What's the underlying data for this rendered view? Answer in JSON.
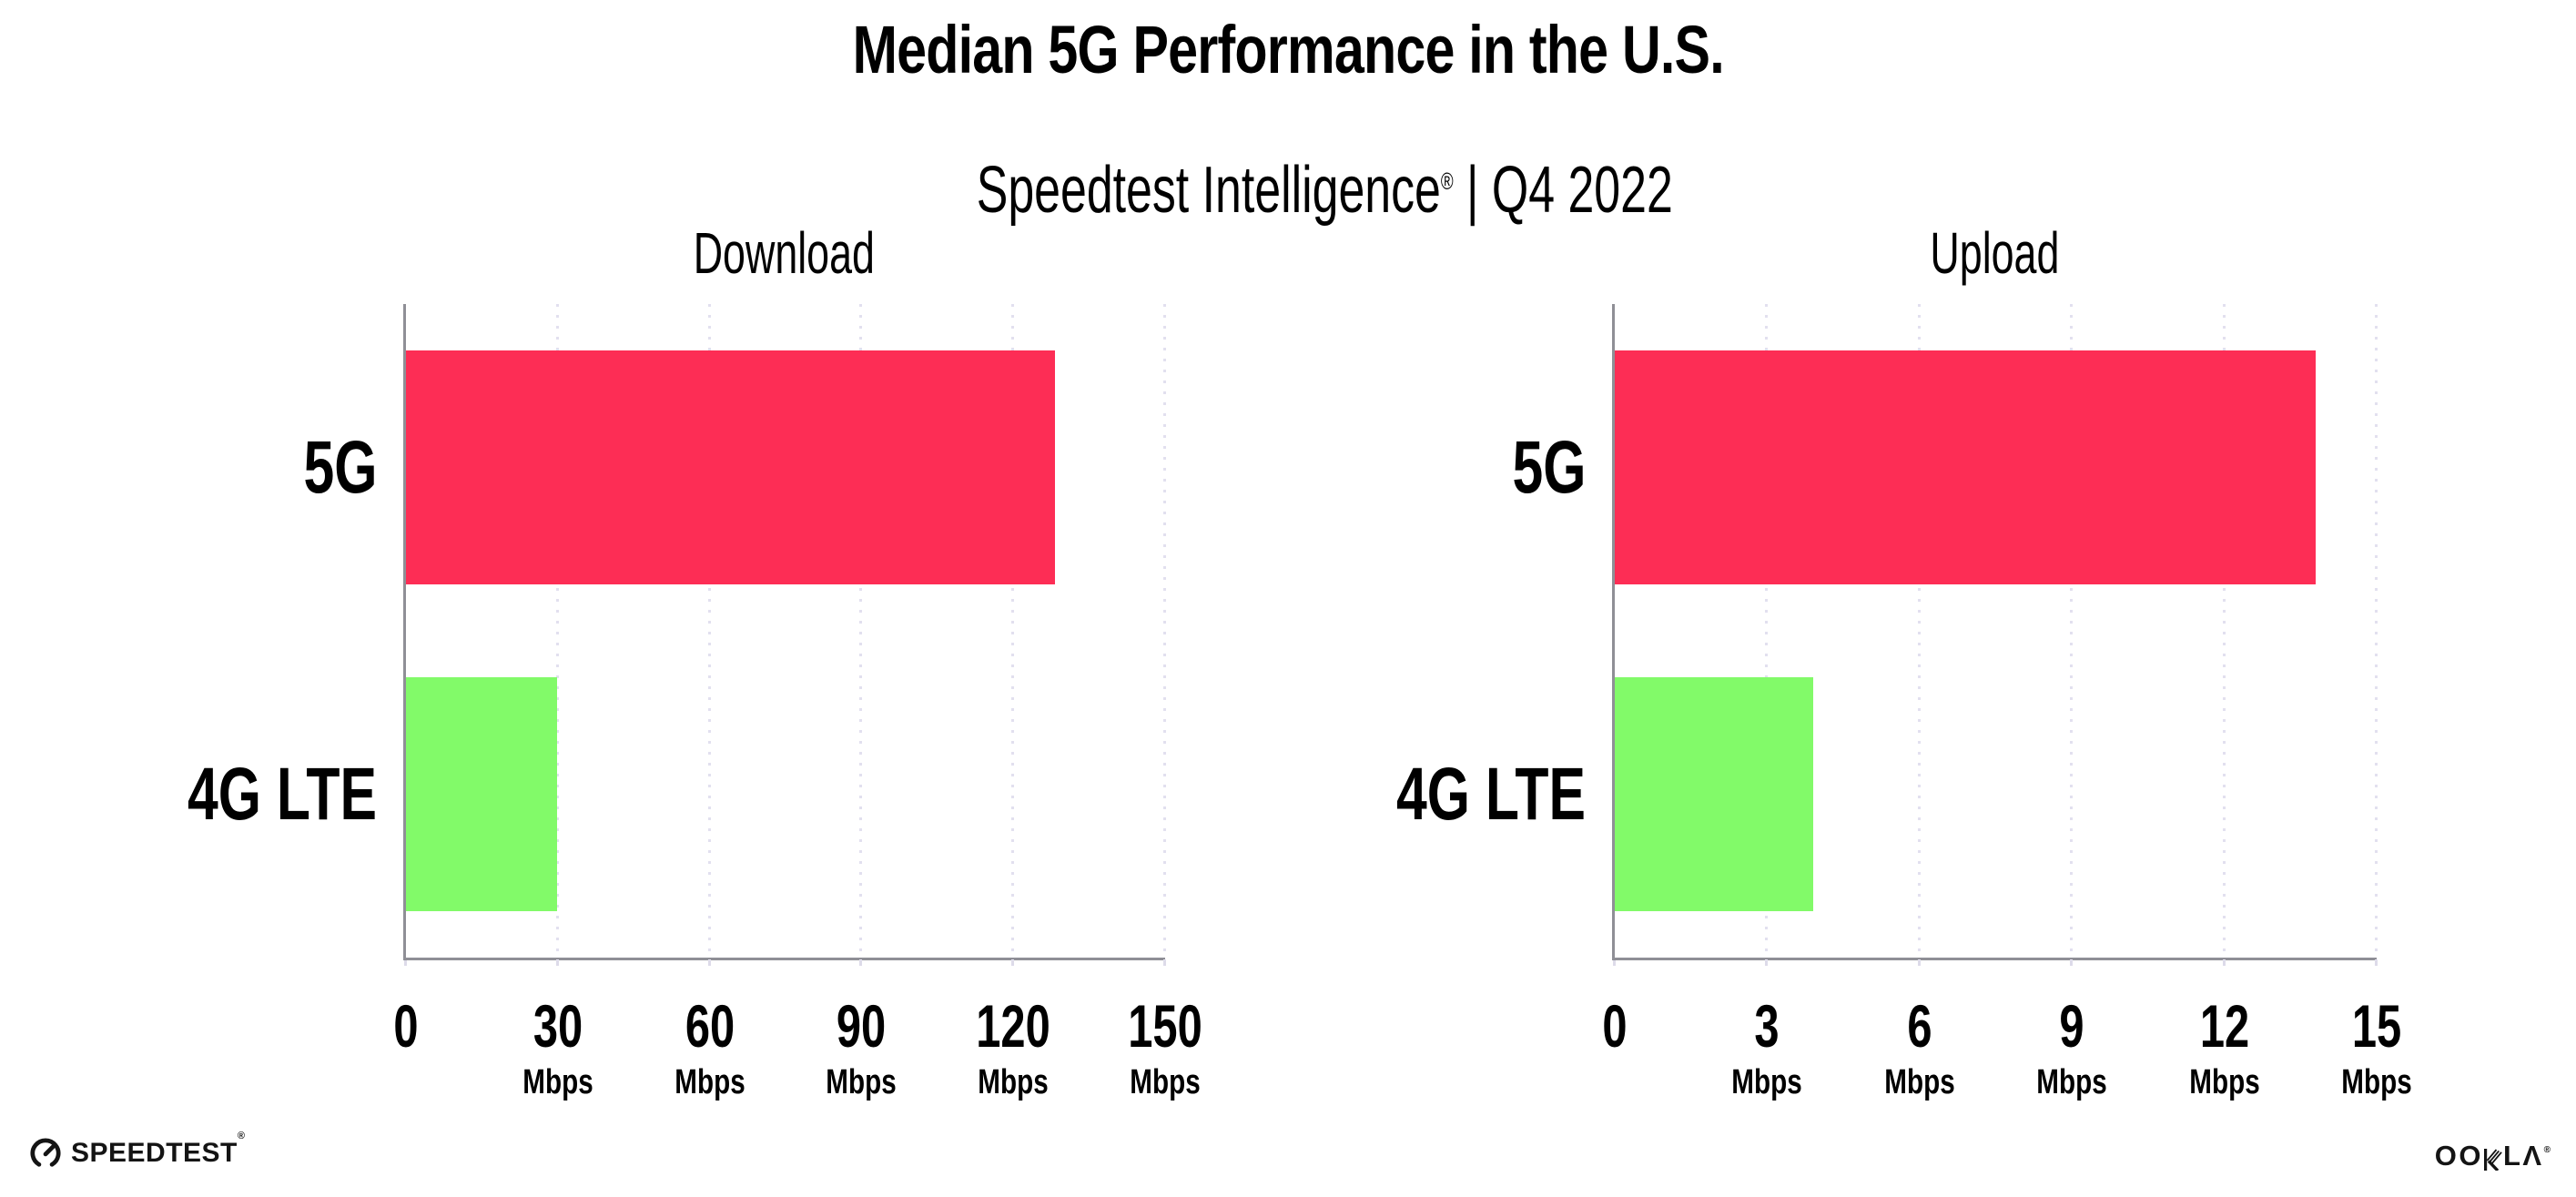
{
  "header": {
    "title": "Median 5G Performance in the U.S.",
    "subtitle_brand": "Speedtest Intelligence",
    "subtitle_reg": "®",
    "subtitle_rest": " | Q4 2022"
  },
  "colors": {
    "bar_colors": [
      "#FD2D55",
      "#82FA69"
    ],
    "axis": "#8f8f96",
    "gridline": "#e2e0ef",
    "text": "#000000"
  },
  "chart_data": [
    {
      "type": "bar",
      "orientation": "horizontal",
      "title": "Download",
      "categories": [
        "5G",
        "4G LTE"
      ],
      "values": [
        128.3,
        29.9
      ],
      "unit": "Mbps",
      "xlim": [
        0,
        150
      ],
      "xticks": [
        0,
        30,
        60,
        90,
        120,
        150
      ],
      "grid": "dotted-vertical",
      "bar_colors": [
        "#FD2D55",
        "#82FA69"
      ]
    },
    {
      "type": "bar",
      "orientation": "horizontal",
      "title": "Upload",
      "categories": [
        "5G",
        "4G LTE"
      ],
      "values": [
        13.8,
        3.9
      ],
      "unit": "Mbps",
      "xlim": [
        0,
        15
      ],
      "xticks": [
        0,
        3,
        6,
        9,
        12,
        15
      ],
      "grid": "dotted-vertical",
      "bar_colors": [
        "#FD2D55",
        "#82FA69"
      ]
    }
  ],
  "footer": {
    "speedtest_label": "SPEEDTEST",
    "speedtest_reg": "®",
    "ookla_left": "OO",
    "ookla_right": "LΛ",
    "ookla_reg": "®"
  }
}
